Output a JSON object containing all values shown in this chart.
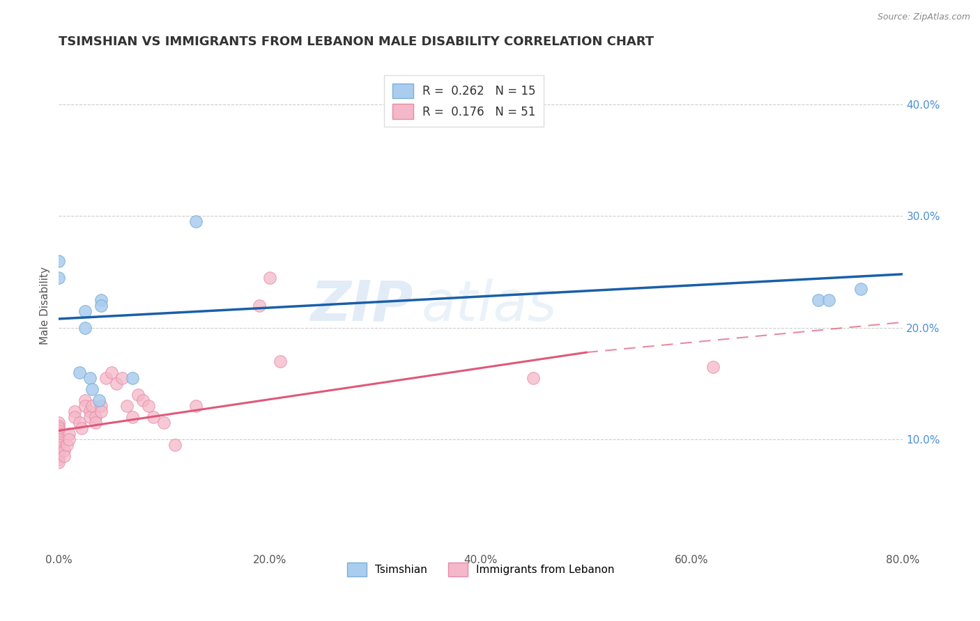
{
  "title": "TSIMSHIAN VS IMMIGRANTS FROM LEBANON MALE DISABILITY CORRELATION CHART",
  "source": "Source: ZipAtlas.com",
  "ylabel": "Male Disability",
  "xlabel_ticks": [
    "0.0%",
    "",
    "",
    "",
    "",
    "20.0%",
    "",
    "",
    "",
    "",
    "40.0%",
    "",
    "",
    "",
    "",
    "60.0%",
    "",
    "",
    "",
    "",
    "80.0%"
  ],
  "xtick_vals": [
    0.0,
    0.04,
    0.08,
    0.12,
    0.16,
    0.2,
    0.24,
    0.28,
    0.32,
    0.36,
    0.4,
    0.44,
    0.48,
    0.52,
    0.56,
    0.6,
    0.64,
    0.68,
    0.72,
    0.76,
    0.8
  ],
  "ylabel_ticks": [
    "10.0%",
    "20.0%",
    "30.0%",
    "40.0%"
  ],
  "ytick_vals": [
    0.1,
    0.2,
    0.3,
    0.4
  ],
  "xlim": [
    0.0,
    0.8
  ],
  "ylim": [
    0.0,
    0.44
  ],
  "legend_labels": [
    "Tsimshian",
    "Immigrants from Lebanon"
  ],
  "legend_r_n": [
    {
      "R": "0.262",
      "N": "15",
      "color": "#aaccee"
    },
    {
      "R": "0.176",
      "N": "51",
      "color": "#f4b8c8"
    }
  ],
  "tsimshian_scatter": {
    "color": "#aaccee",
    "edge_color": "#7ab0d8",
    "x": [
      0.0,
      0.0,
      0.02,
      0.025,
      0.025,
      0.03,
      0.032,
      0.038,
      0.04,
      0.04,
      0.07,
      0.13,
      0.72,
      0.73,
      0.76
    ],
    "y": [
      0.245,
      0.26,
      0.16,
      0.2,
      0.215,
      0.155,
      0.145,
      0.135,
      0.225,
      0.22,
      0.155,
      0.295,
      0.225,
      0.225,
      0.235
    ]
  },
  "lebanon_scatter": {
    "color": "#f4b8c8",
    "edge_color": "#e88aa8",
    "x": [
      0.0,
      0.0,
      0.0,
      0.0,
      0.0,
      0.0,
      0.0,
      0.0,
      0.0,
      0.0,
      0.0,
      0.0,
      0.0,
      0.0,
      0.0,
      0.005,
      0.005,
      0.008,
      0.01,
      0.01,
      0.015,
      0.015,
      0.02,
      0.022,
      0.025,
      0.025,
      0.03,
      0.03,
      0.032,
      0.035,
      0.035,
      0.04,
      0.04,
      0.045,
      0.05,
      0.055,
      0.06,
      0.065,
      0.07,
      0.075,
      0.08,
      0.085,
      0.09,
      0.1,
      0.11,
      0.13,
      0.19,
      0.2,
      0.21,
      0.45,
      0.62
    ],
    "y": [
      0.115,
      0.112,
      0.11,
      0.108,
      0.105,
      0.102,
      0.1,
      0.098,
      0.095,
      0.093,
      0.09,
      0.088,
      0.085,
      0.082,
      0.08,
      0.09,
      0.085,
      0.095,
      0.105,
      0.1,
      0.125,
      0.12,
      0.115,
      0.11,
      0.135,
      0.13,
      0.125,
      0.12,
      0.13,
      0.12,
      0.115,
      0.13,
      0.125,
      0.155,
      0.16,
      0.15,
      0.155,
      0.13,
      0.12,
      0.14,
      0.135,
      0.13,
      0.12,
      0.115,
      0.095,
      0.13,
      0.22,
      0.245,
      0.17,
      0.155,
      0.165
    ]
  },
  "tsimshian_line": {
    "color": "#1a5fa8",
    "x0": 0.0,
    "y0": 0.208,
    "x1": 0.8,
    "y1": 0.248
  },
  "lebanon_line_solid": {
    "color": "#e05878",
    "x0": 0.0,
    "y0": 0.108,
    "x1": 0.5,
    "y1": 0.178
  },
  "lebanon_line_dashed": {
    "color": "#e05878",
    "x0": 0.5,
    "y0": 0.178,
    "x1": 0.8,
    "y1": 0.205
  },
  "grid_color": "#cccccc",
  "background_color": "#ffffff",
  "watermark_text": "ZIP",
  "watermark_text2": "atlas",
  "title_fontsize": 13,
  "axis_label_fontsize": 11,
  "tick_fontsize": 11,
  "right_ytick_color": "#4a8fd4",
  "source_color": "#888888"
}
